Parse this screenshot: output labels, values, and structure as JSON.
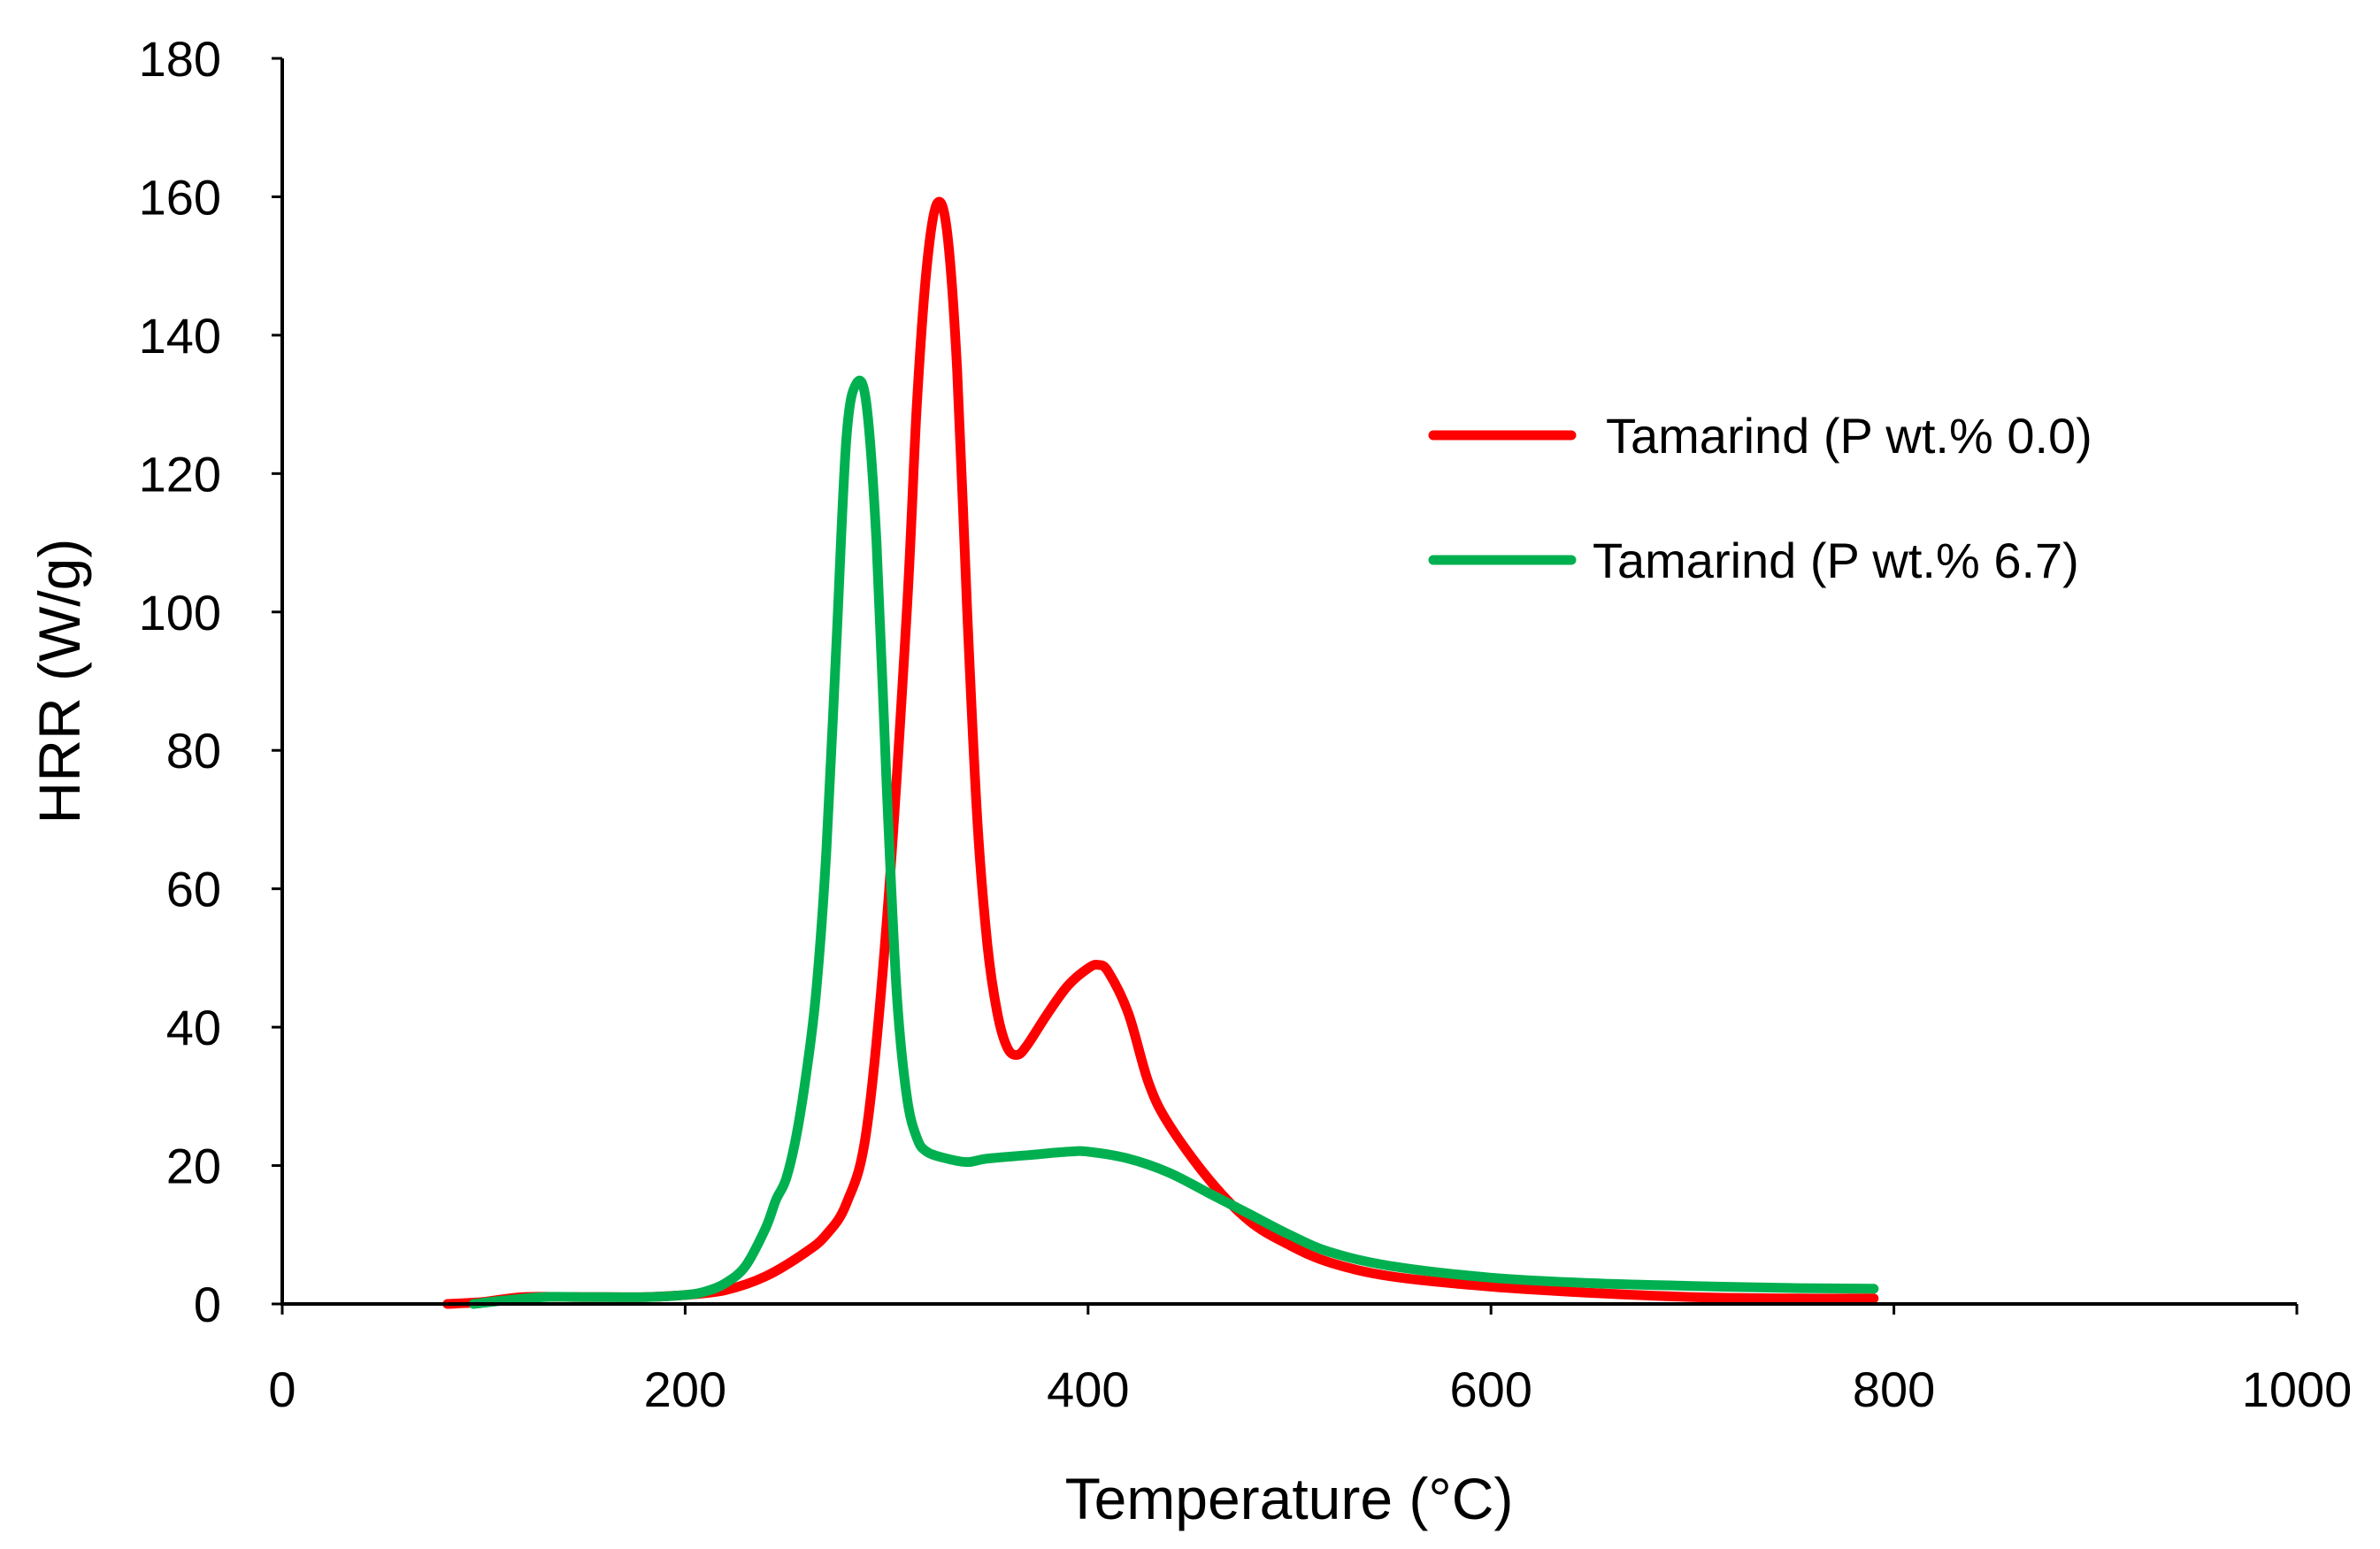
{
  "chart_data": {
    "type": "line",
    "title": "",
    "xlabel": "Temperature (°C)",
    "ylabel": "HRR (W/g)",
    "xlim": [
      0,
      1000
    ],
    "ylim": [
      0,
      180
    ],
    "xticks": [
      0,
      200,
      400,
      600,
      800,
      1000
    ],
    "yticks": [
      0,
      20,
      40,
      60,
      80,
      100,
      120,
      140,
      160,
      180
    ],
    "grid": false,
    "legend_position": "upper-right",
    "series": [
      {
        "name": "Tamarind (P wt.% 0.0)",
        "color": "#ff0000",
        "x": [
          82,
          100,
          120,
          150,
          180,
          200,
          220,
          240,
          260,
          270,
          280,
          290,
          300,
          310,
          315,
          320,
          325,
          330,
          335,
          340,
          345,
          350,
          355,
          360,
          365,
          370,
          380,
          390,
          400,
          405,
          410,
          420,
          430,
          440,
          460,
          480,
          500,
          520,
          550,
          600,
          650,
          700,
          750,
          790
        ],
        "y": [
          0,
          0.3,
          1.0,
          1.0,
          1.0,
          1.3,
          2.0,
          4.0,
          7.5,
          10.0,
          14.5,
          25.0,
          55.0,
          100.0,
          130.0,
          150.0,
          159.0,
          155.0,
          135.0,
          100.0,
          70.0,
          52.0,
          42.0,
          37.0,
          36.0,
          37.5,
          42.0,
          46.0,
          48.5,
          49.0,
          48.0,
          42.0,
          32.0,
          26.0,
          18.0,
          12.0,
          8.5,
          6.0,
          4.0,
          2.5,
          1.6,
          1.0,
          0.8,
          0.8
        ]
      },
      {
        "name": "Tamarind (P wt.% 6.7)",
        "color": "#00b050",
        "x": [
          95,
          110,
          130,
          150,
          180,
          200,
          210,
          220,
          230,
          240,
          245,
          250,
          255,
          260,
          265,
          270,
          275,
          280,
          285,
          290,
          295,
          300,
          305,
          310,
          315,
          320,
          330,
          340,
          350,
          370,
          390,
          400,
          420,
          440,
          460,
          480,
          500,
          520,
          550,
          600,
          650,
          700,
          750,
          790
        ],
        "y": [
          0,
          0.5,
          1.0,
          1.0,
          1.0,
          1.3,
          1.8,
          3.0,
          5.5,
          11.0,
          15.0,
          18.0,
          24.0,
          33.0,
          45.0,
          65.0,
          95.0,
          125.0,
          133.0,
          130.0,
          110.0,
          75.0,
          45.0,
          30.0,
          24.0,
          22.0,
          21.0,
          20.5,
          21.0,
          21.5,
          22.0,
          22.0,
          21.0,
          19.0,
          16.0,
          13.0,
          10.0,
          7.5,
          5.5,
          3.8,
          3.0,
          2.6,
          2.3,
          2.2
        ]
      }
    ]
  }
}
